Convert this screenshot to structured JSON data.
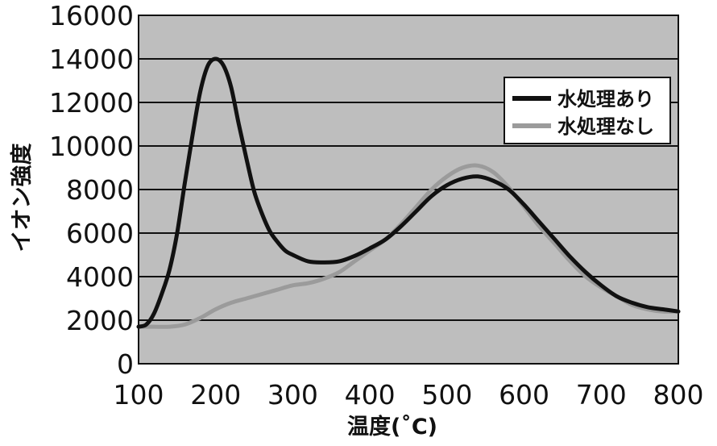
{
  "chart_data": {
    "type": "line",
    "xlabel": "温度(˚C)",
    "ylabel": "イオン強度",
    "xlim": [
      100,
      800
    ],
    "ylim": [
      0,
      16000
    ],
    "x_ticks": [
      100,
      200,
      300,
      400,
      500,
      600,
      700,
      800
    ],
    "y_ticks": [
      0,
      2000,
      4000,
      6000,
      8000,
      10000,
      12000,
      14000,
      16000
    ],
    "grid": "horizontal",
    "legend_position": "right",
    "colors": {
      "plot_background": "#bebebe",
      "gridline": "#111111"
    },
    "series": [
      {
        "name": "水処理あり",
        "color": "#111111",
        "x": [
          100,
          110,
          120,
          130,
          140,
          150,
          160,
          170,
          180,
          190,
          200,
          210,
          220,
          230,
          240,
          250,
          260,
          270,
          280,
          290,
          300,
          320,
          340,
          360,
          380,
          400,
          420,
          440,
          460,
          480,
          500,
          520,
          540,
          560,
          580,
          600,
          620,
          640,
          660,
          680,
          700,
          720,
          740,
          760,
          780,
          800
        ],
        "y": [
          1700,
          1800,
          2300,
          3200,
          4300,
          6000,
          8300,
          10500,
          12500,
          13700,
          14000,
          13700,
          12700,
          11000,
          9400,
          7900,
          6900,
          6100,
          5600,
          5200,
          5000,
          4700,
          4650,
          4700,
          4950,
          5300,
          5700,
          6300,
          7000,
          7700,
          8200,
          8500,
          8600,
          8400,
          8000,
          7300,
          6500,
          5700,
          4900,
          4200,
          3600,
          3100,
          2800,
          2600,
          2500,
          2400
        ]
      },
      {
        "name": "水処理なし",
        "color": "#9b9b9b",
        "x": [
          100,
          120,
          140,
          160,
          180,
          200,
          220,
          240,
          260,
          280,
          300,
          320,
          340,
          360,
          380,
          400,
          420,
          440,
          460,
          480,
          500,
          520,
          540,
          560,
          580,
          600,
          620,
          640,
          660,
          680,
          700,
          720,
          740,
          760,
          780,
          800
        ],
        "y": [
          1700,
          1700,
          1700,
          1800,
          2100,
          2500,
          2800,
          3000,
          3200,
          3400,
          3600,
          3700,
          3900,
          4200,
          4700,
          5200,
          5700,
          6400,
          7200,
          8000,
          8600,
          9000,
          9100,
          8800,
          8100,
          7200,
          6300,
          5500,
          4700,
          4000,
          3500,
          3100,
          2700,
          2500,
          2400,
          2400
        ]
      }
    ]
  }
}
